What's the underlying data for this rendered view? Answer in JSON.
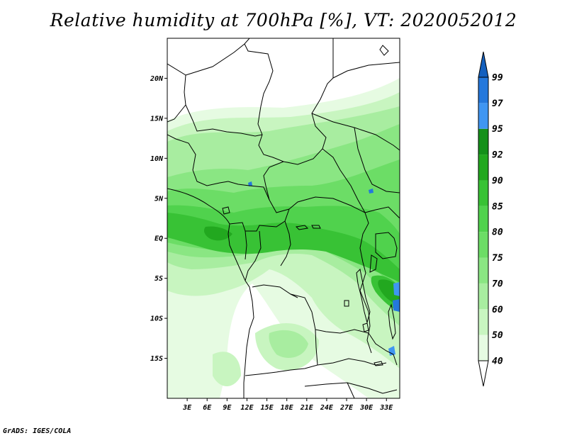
{
  "title": "Relative humidity at 700hPa [%], VT: 2020052012",
  "credit": "GrADS: IGES/COLA",
  "map": {
    "lon_range": [
      0,
      35
    ],
    "lat_range": [
      -20,
      25
    ],
    "lat_ticks": [
      {
        "value": 20,
        "label": "20N"
      },
      {
        "value": 15,
        "label": "15N"
      },
      {
        "value": 10,
        "label": "10N"
      },
      {
        "value": 5,
        "label": "5N"
      },
      {
        "value": 0,
        "label": "EQ"
      },
      {
        "value": -5,
        "label": "5S"
      },
      {
        "value": -10,
        "label": "10S"
      },
      {
        "value": -15,
        "label": "15S"
      }
    ],
    "lon_ticks": [
      {
        "value": 3,
        "label": "3E"
      },
      {
        "value": 6,
        "label": "6E"
      },
      {
        "value": 9,
        "label": "9E"
      },
      {
        "value": 12,
        "label": "12E"
      },
      {
        "value": 15,
        "label": "15E"
      },
      {
        "value": 18,
        "label": "18E"
      },
      {
        "value": 21,
        "label": "21E"
      },
      {
        "value": 24,
        "label": "24E"
      },
      {
        "value": 27,
        "label": "27E"
      },
      {
        "value": 30,
        "label": "30E"
      },
      {
        "value": 33,
        "label": "33E"
      }
    ]
  },
  "colorbar": {
    "levels": [
      "40",
      "50",
      "60",
      "70",
      "75",
      "80",
      "85",
      "90",
      "92",
      "95",
      "97",
      "99"
    ],
    "colors": [
      "#e6fbe2",
      "#c8f5c0",
      "#a8eda0",
      "#8ae683",
      "#6cdd66",
      "#50d24d",
      "#38c235",
      "#22a81f",
      "#14901a",
      "#3f96f2",
      "#2478dc",
      "#1460be"
    ],
    "low_color": "#ffffff"
  }
}
